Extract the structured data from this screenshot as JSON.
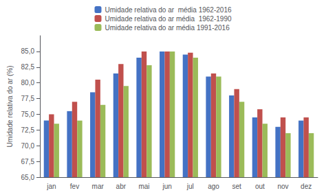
{
  "chart_data": {
    "type": "bar",
    "ylabel": "Umidade relativa do ar (%)",
    "categories": [
      "jan",
      "fev",
      "mar",
      "abr",
      "mai",
      "jun",
      "jul",
      "ago",
      "set",
      "out",
      "nov",
      "dez"
    ],
    "series": [
      {
        "name": "Umidade relativa do ar  média 1962-2016",
        "color": "#4472c4",
        "values": [
          74.0,
          75.5,
          78.5,
          81.5,
          84.0,
          85.0,
          84.5,
          81.0,
          78.0,
          74.5,
          73.0,
          74.0
        ]
      },
      {
        "name": "Umidade relativa do ar média  1962-1990",
        "color": "#c0504d",
        "values": [
          75.0,
          77.0,
          80.5,
          83.0,
          85.0,
          85.0,
          84.8,
          81.5,
          79.0,
          75.8,
          74.5,
          74.5
        ]
      },
      {
        "name": "Umidade relativa do ar média 1991-2016",
        "color": "#9bbb59",
        "values": [
          73.5,
          74.0,
          76.5,
          79.5,
          82.8,
          85.0,
          84.0,
          81.0,
          77.0,
          73.5,
          72.0,
          72.0
        ]
      }
    ],
    "ylim": [
      65.0,
      87.5
    ],
    "yticks": [
      {
        "value": 65.0,
        "label": "65,0"
      },
      {
        "value": 67.5,
        "label": "67,5"
      },
      {
        "value": 70.0,
        "label": "70,0"
      },
      {
        "value": 72.5,
        "label": "72,5"
      },
      {
        "value": 75.0,
        "label": "75,0"
      },
      {
        "value": 77.5,
        "label": "77,5"
      },
      {
        "value": 80.0,
        "label": "80,0"
      },
      {
        "value": 82.5,
        "label": "82,5"
      },
      {
        "value": 85.0,
        "label": "85,0"
      }
    ],
    "grid": false,
    "legend": "top"
  }
}
